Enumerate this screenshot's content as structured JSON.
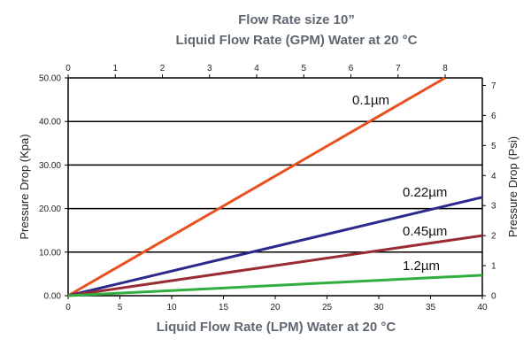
{
  "chart_data": {
    "type": "line",
    "title": "Flow Rate size 10”",
    "subtitle": "Liquid Flow Rate (GPM) Water at 20 °C",
    "xlabel": "Liquid Flow Rate (LPM) Water at 20 °C",
    "ylabel": "Pressure Drop (Kpa)",
    "y2label": "Pressure Drop (Psi)",
    "xlim": [
      0,
      40
    ],
    "ylim": [
      0,
      50
    ],
    "y2lim": [
      0,
      7.25
    ],
    "x2lim": [
      0,
      8.8
    ],
    "x_ticks": [
      "0",
      "5",
      "10",
      "15",
      "20",
      "25",
      "30",
      "35",
      "40"
    ],
    "y_ticks": [
      "0.00",
      "10.00",
      "20.00",
      "30.00",
      "40.00",
      "50.00"
    ],
    "y2_ticks": [
      "0",
      "1",
      "2",
      "3",
      "4",
      "5",
      "6",
      "7"
    ],
    "x2_ticks": [
      "0",
      "1",
      "2",
      "3",
      "4",
      "5",
      "6",
      "7",
      "8"
    ],
    "grid": "horizontal",
    "series": [
      {
        "name": "0.1µm",
        "color": "#e8501e",
        "x": [
          0,
          36.4
        ],
        "y": [
          0,
          50
        ]
      },
      {
        "name": "0.22µm",
        "color": "#2b2a8c",
        "x": [
          0,
          40
        ],
        "y": [
          0,
          22.6
        ]
      },
      {
        "name": "0.45µm",
        "color": "#9a2b33",
        "x": [
          0,
          40
        ],
        "y": [
          0,
          13.8
        ]
      },
      {
        "name": "1.2µm",
        "color": "#2fae3e",
        "x": [
          0,
          40
        ],
        "y": [
          0,
          4.7
        ]
      }
    ]
  }
}
